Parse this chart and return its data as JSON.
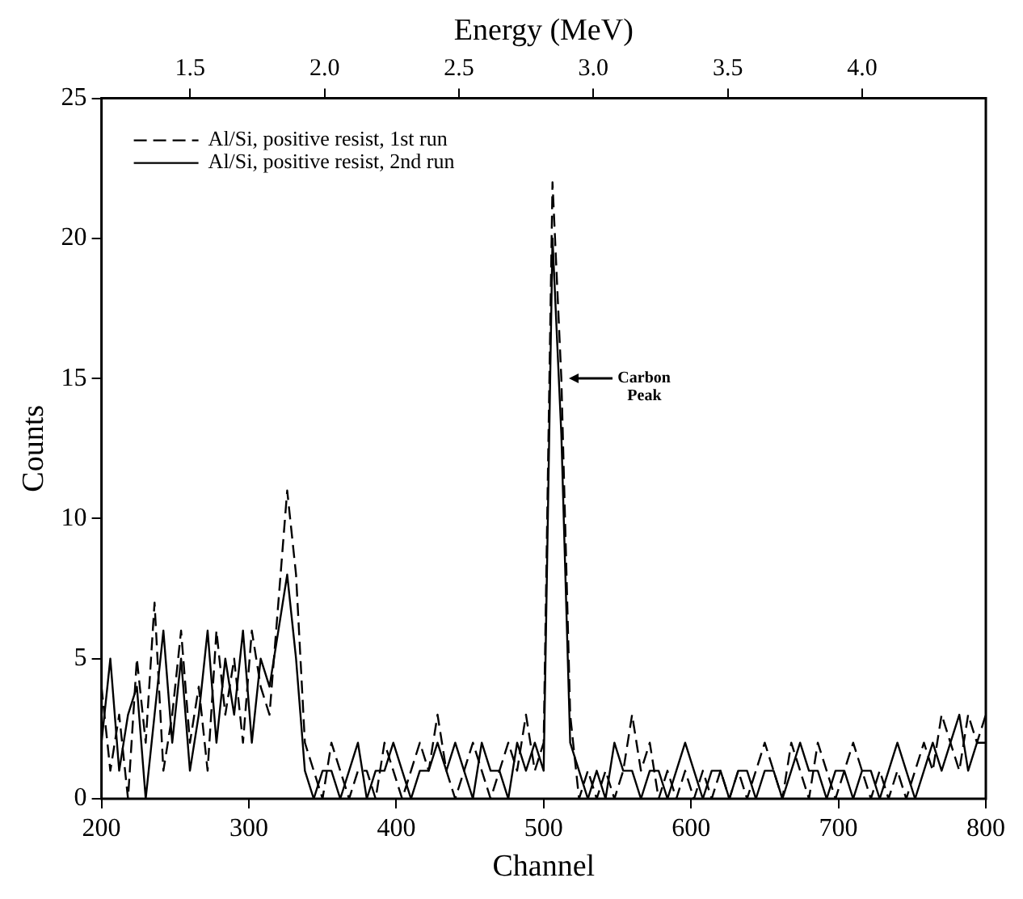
{
  "chart_data": {
    "type": "line",
    "xlabel": "Channel",
    "ylabel": "Counts",
    "x2label": "Energy (MeV)",
    "xlim": [
      200,
      800
    ],
    "xticks": [
      200,
      300,
      400,
      500,
      600,
      700,
      800
    ],
    "x2lim": [
      1.17,
      4.46
    ],
    "x2ticks": [
      {
        "value": 1.5,
        "label": "1.5"
      },
      {
        "value": 2.0,
        "label": "2.0"
      },
      {
        "value": 2.5,
        "label": "2.5"
      },
      {
        "value": 3.0,
        "label": "3.0"
      },
      {
        "value": 3.5,
        "label": "3.5"
      },
      {
        "value": 4.0,
        "label": "4.0"
      }
    ],
    "ylim": [
      0,
      25
    ],
    "yticks": [
      0,
      5,
      10,
      15,
      20,
      25
    ],
    "grid": false,
    "legend": "top left",
    "marker": "none",
    "x": [
      200,
      206,
      212,
      218,
      224,
      230,
      236,
      242,
      248,
      254,
      260,
      266,
      272,
      278,
      284,
      290,
      296,
      302,
      308,
      314,
      320,
      326,
      332,
      338,
      344,
      350,
      356,
      362,
      368,
      374,
      380,
      386,
      392,
      398,
      404,
      410,
      416,
      422,
      428,
      434,
      440,
      446,
      452,
      458,
      464,
      470,
      476,
      482,
      488,
      494,
      500,
      506,
      512,
      518,
      524,
      530,
      536,
      542,
      548,
      554,
      560,
      566,
      572,
      578,
      584,
      590,
      596,
      602,
      608,
      614,
      620,
      626,
      632,
      638,
      644,
      650,
      656,
      662,
      668,
      674,
      680,
      686,
      692,
      698,
      704,
      710,
      716,
      722,
      728,
      734,
      740,
      746,
      752,
      758,
      764,
      770,
      776,
      782,
      788,
      794,
      800
    ],
    "series": [
      {
        "name": "Al/Si, positive resist, 1st run",
        "color": "#000000",
        "line_style": "dashed",
        "values": [
          4,
          1,
          3,
          0,
          5,
          2,
          7,
          1,
          3,
          6,
          2,
          4,
          1,
          6,
          3,
          5,
          2,
          6,
          4,
          3,
          7,
          11,
          8,
          2,
          1,
          0,
          2,
          1,
          0,
          1,
          1,
          0,
          2,
          1,
          0,
          1,
          2,
          1,
          3,
          1,
          0,
          1,
          2,
          1,
          0,
          1,
          2,
          1,
          3,
          1,
          2,
          22,
          15,
          3,
          0,
          1,
          0,
          1,
          0,
          1,
          3,
          1,
          2,
          0,
          1,
          0,
          1,
          0,
          1,
          0,
          1,
          0,
          1,
          0,
          1,
          2,
          1,
          0,
          2,
          1,
          0,
          2,
          1,
          0,
          1,
          2,
          1,
          0,
          1,
          0,
          1,
          0,
          1,
          2,
          1,
          3,
          2,
          1,
          3,
          2,
          3
        ]
      },
      {
        "name": "Al/Si, positive resist, 2nd run",
        "color": "#000000",
        "line_style": "solid",
        "values": [
          2,
          5,
          1,
          3,
          4,
          0,
          3,
          6,
          2,
          5,
          1,
          3,
          6,
          2,
          5,
          3,
          6,
          2,
          5,
          4,
          6,
          8,
          5,
          1,
          0,
          1,
          1,
          0,
          1,
          2,
          0,
          1,
          1,
          2,
          1,
          0,
          1,
          1,
          2,
          1,
          2,
          1,
          0,
          2,
          1,
          1,
          0,
          2,
          1,
          2,
          1,
          20,
          13,
          2,
          1,
          0,
          1,
          0,
          2,
          1,
          1,
          0,
          1,
          1,
          0,
          1,
          2,
          1,
          0,
          1,
          1,
          0,
          1,
          1,
          0,
          1,
          1,
          0,
          1,
          2,
          1,
          1,
          0,
          1,
          1,
          0,
          1,
          1,
          0,
          1,
          2,
          1,
          0,
          1,
          2,
          1,
          2,
          3,
          1,
          2,
          2
        ]
      }
    ],
    "annotations": [
      "Carbon Peak"
    ]
  }
}
